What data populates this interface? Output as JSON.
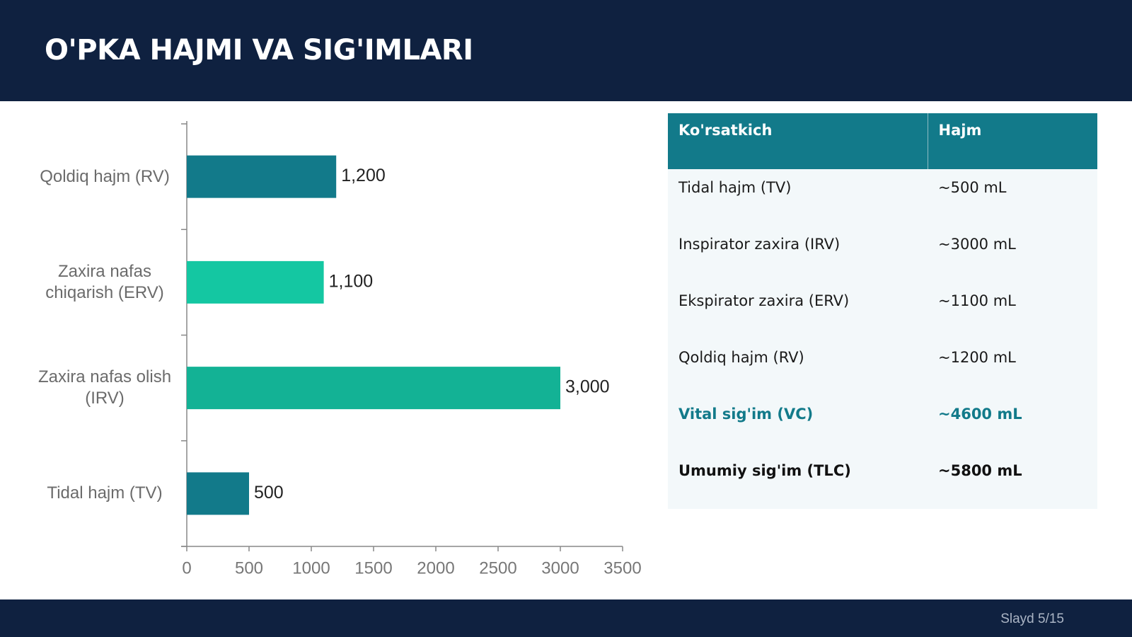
{
  "header": {
    "title": "O'PKA HAJMI VA SIG'IMLARI"
  },
  "chart_data": {
    "type": "barh",
    "categories": [
      "Tidal hajm (TV)",
      "Zaxira nafas olish (IRV)",
      "Zaxira nafas chiqarish (ERV)",
      "Qoldiq hajm (RV)"
    ],
    "values": [
      500,
      3000,
      1100,
      1200
    ],
    "value_labels": [
      "500",
      "3,000",
      "1,100",
      "1,200"
    ],
    "colors": [
      "#127a8a",
      "#13b295",
      "#14c7a2",
      "#127a8a"
    ],
    "xlim": [
      0,
      3500
    ],
    "xticks": [
      0,
      500,
      1000,
      1500,
      2000,
      2500,
      3000,
      3500
    ]
  },
  "table": {
    "header": [
      "Ko'rsatkich",
      "Hajm"
    ],
    "rows": [
      [
        "Tidal hajm (TV)",
        "~500 mL"
      ],
      [
        "Inspirator zaxira (IRV)",
        "~3000 mL"
      ],
      [
        "Ekspirator zaxira (ERV)",
        "~1100 mL"
      ],
      [
        "Qoldiq hajm (RV)",
        "~1200 mL"
      ],
      [
        "Vital sig'im (VC)",
        "~4600 mL"
      ],
      [
        "Umumiy sig'im (TLC)",
        "~5800 mL"
      ]
    ]
  },
  "footer": {
    "slide": "Slayd 5/15"
  }
}
